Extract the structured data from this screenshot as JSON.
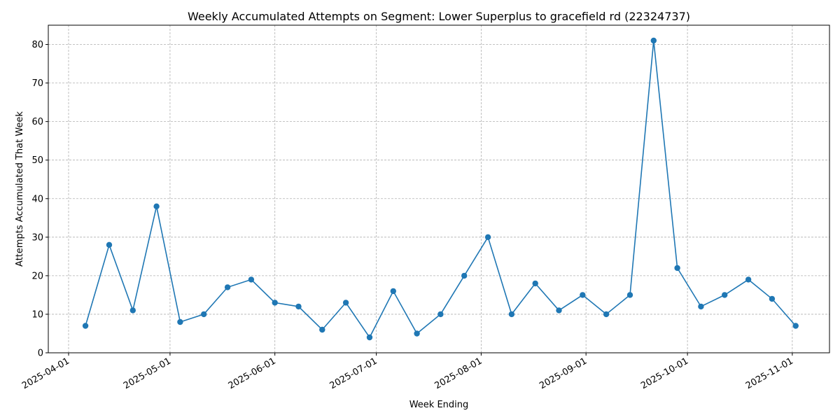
{
  "chart_data": {
    "type": "line",
    "title": "Weekly Accumulated Attempts on Segment: Lower Superplus to gracefield rd (22324737)",
    "xlabel": "Week Ending",
    "ylabel": "Attempts Accumulated That Week",
    "xlim": [
      "2025-03-26",
      "2025-11-12"
    ],
    "ylim": [
      0,
      85
    ],
    "x_ticks": [
      "2025-04-01",
      "2025-05-01",
      "2025-06-01",
      "2025-07-01",
      "2025-08-01",
      "2025-09-01",
      "2025-10-01",
      "2025-11-01"
    ],
    "y_ticks": [
      0,
      10,
      20,
      30,
      40,
      50,
      60,
      70,
      80
    ],
    "grid": true,
    "color": "#1f77b4",
    "marker": "circle",
    "x": [
      "2025-04-06",
      "2025-04-13",
      "2025-04-20",
      "2025-04-27",
      "2025-05-04",
      "2025-05-11",
      "2025-05-18",
      "2025-05-25",
      "2025-06-01",
      "2025-06-08",
      "2025-06-15",
      "2025-06-22",
      "2025-06-29",
      "2025-07-06",
      "2025-07-13",
      "2025-07-20",
      "2025-07-27",
      "2025-08-03",
      "2025-08-10",
      "2025-08-17",
      "2025-08-24",
      "2025-08-31",
      "2025-09-07",
      "2025-09-14",
      "2025-09-21",
      "2025-09-28",
      "2025-10-05",
      "2025-10-12",
      "2025-10-19",
      "2025-10-26",
      "2025-11-02"
    ],
    "values": [
      7,
      28,
      11,
      38,
      8,
      10,
      17,
      19,
      13,
      12,
      6,
      13,
      4,
      16,
      5,
      10,
      20,
      30,
      10,
      18,
      11,
      15,
      10,
      15,
      81,
      22,
      12,
      15,
      19,
      14,
      7
    ]
  }
}
